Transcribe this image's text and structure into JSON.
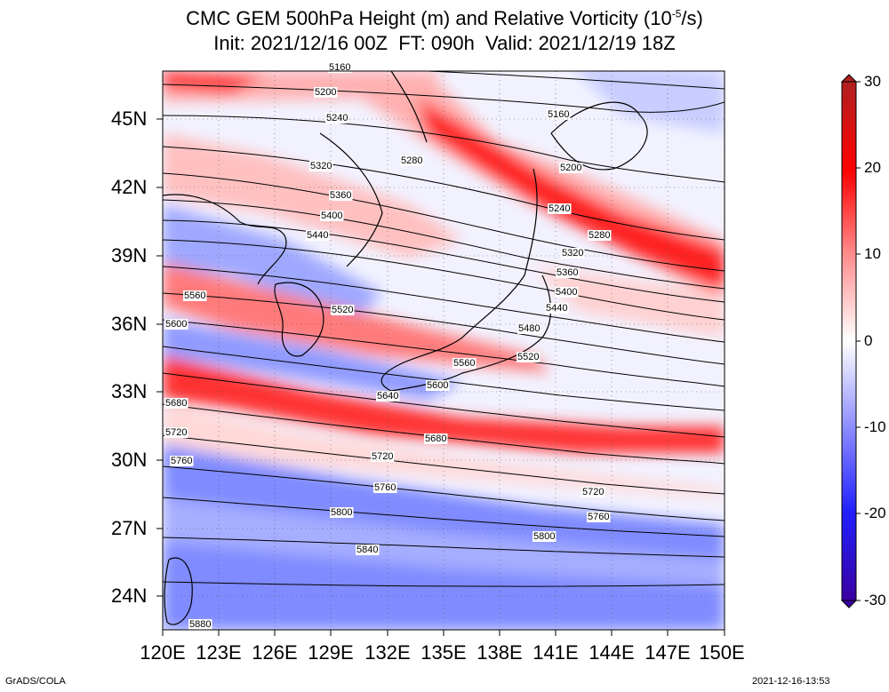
{
  "title": {
    "line1_prefix": "CMC GEM 500hPa Height (m) and Relative Vorticity (10",
    "line1_sup": "-5",
    "line1_suffix": "/s)",
    "line2": "Init: 2021/12/16 00Z  FT: 090h  Valid: 2021/12/19 18Z"
  },
  "axes": {
    "lon_labels": [
      "120E",
      "123E",
      "126E",
      "129E",
      "132E",
      "135E",
      "138E",
      "141E",
      "144E",
      "147E",
      "150E"
    ],
    "lat_labels": [
      "45N",
      "42N",
      "39N",
      "36N",
      "33N",
      "30N",
      "27N",
      "24N"
    ],
    "lon_range": [
      120,
      150
    ],
    "lat_range": [
      22.5,
      47.5
    ]
  },
  "colorbar": {
    "ticks": [
      "30",
      "20",
      "10",
      "0",
      "-10",
      "-20",
      "-30"
    ],
    "range": [
      -30,
      30
    ],
    "colors": {
      "max": "#b02020",
      "pos": "#ff0000",
      "zero": "#ffffff",
      "neg": "#2020ff",
      "min": "#3a00a0"
    }
  },
  "contours": {
    "units": "m",
    "labels": [
      "5160",
      "5200",
      "5240",
      "5280",
      "5320",
      "5360",
      "5400",
      "5440",
      "5480",
      "5520",
      "5560",
      "5600",
      "5640",
      "5680",
      "5720",
      "5760",
      "5800",
      "5840",
      "5880"
    ]
  },
  "footer": {
    "credit": "GrADS/COLA",
    "timestamp": "2021-12-16-13:53"
  }
}
